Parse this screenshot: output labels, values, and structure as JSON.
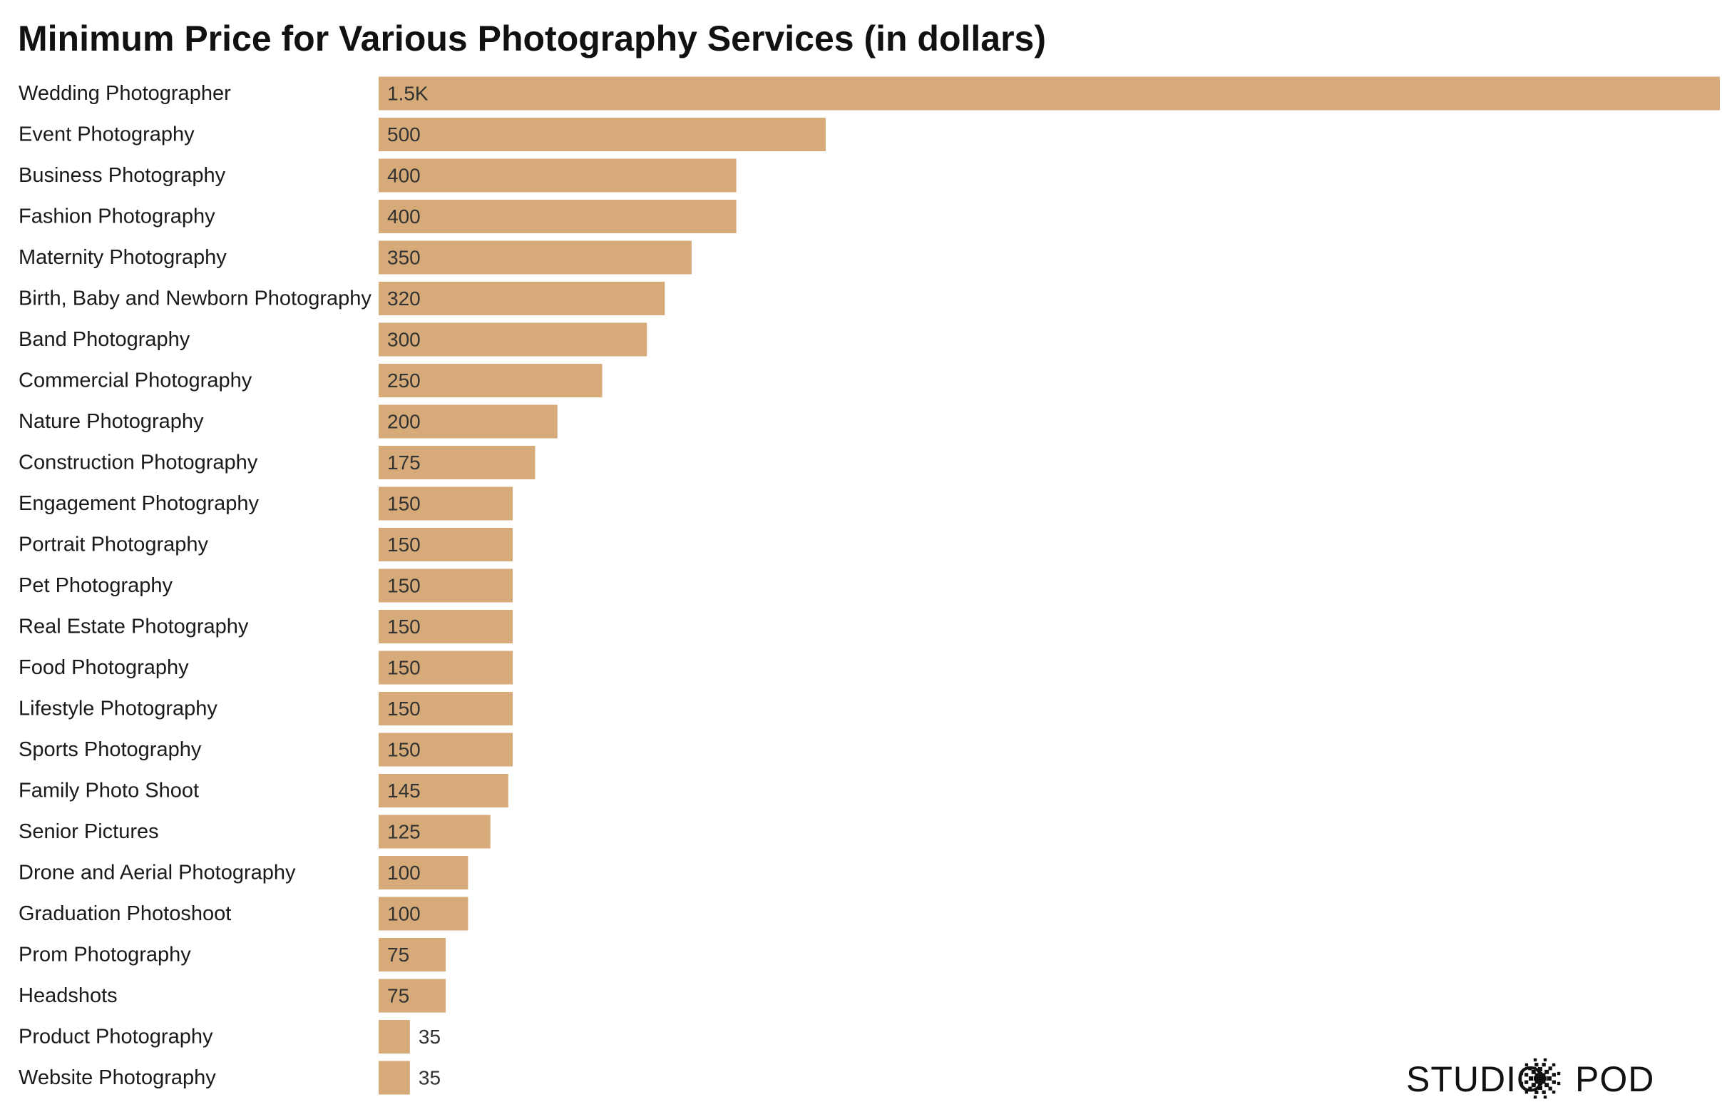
{
  "chart_data": {
    "type": "bar",
    "orientation": "horizontal",
    "title": "Minimum Price for Various Photography Services (in dollars)",
    "categories": [
      "Wedding Photographer",
      "Event Photography",
      "Business Photography",
      "Fashion Photography",
      "Maternity Photography",
      "Birth, Baby and Newborn Photography",
      "Band Photography",
      "Commercial Photography",
      "Nature Photography",
      "Construction Photography",
      "Engagement Photography",
      "Portrait Photography",
      "Pet Photography",
      "Real Estate Photography",
      "Food Photography",
      "Lifestyle Photography",
      "Sports Photography",
      "Family Photo Shoot",
      "Senior Pictures",
      "Drone and Aerial Photography",
      "Graduation Photoshoot",
      "Prom Photography",
      "Headshots",
      "Product Photography",
      "Website Photography"
    ],
    "values": [
      1500,
      500,
      400,
      400,
      350,
      320,
      300,
      250,
      200,
      175,
      150,
      150,
      150,
      150,
      150,
      150,
      150,
      145,
      125,
      100,
      100,
      75,
      75,
      35,
      35
    ],
    "value_labels": [
      "1.5K",
      "500",
      "400",
      "400",
      "350",
      "320",
      "300",
      "250",
      "200",
      "175",
      "150",
      "150",
      "150",
      "150",
      "150",
      "150",
      "150",
      "145",
      "125",
      "100",
      "100",
      "75",
      "75",
      "35",
      "35"
    ],
    "xlabel": "",
    "ylabel": "",
    "xlim": [
      0,
      1500
    ],
    "grid": false,
    "legend": "none",
    "bar_color": "#d6ab79",
    "label_color_inside": "#333333",
    "label_color_outside": "#333333"
  },
  "brand": {
    "left": "STUDIO",
    "right": "POD",
    "mark_icon": "starburst-icon"
  }
}
